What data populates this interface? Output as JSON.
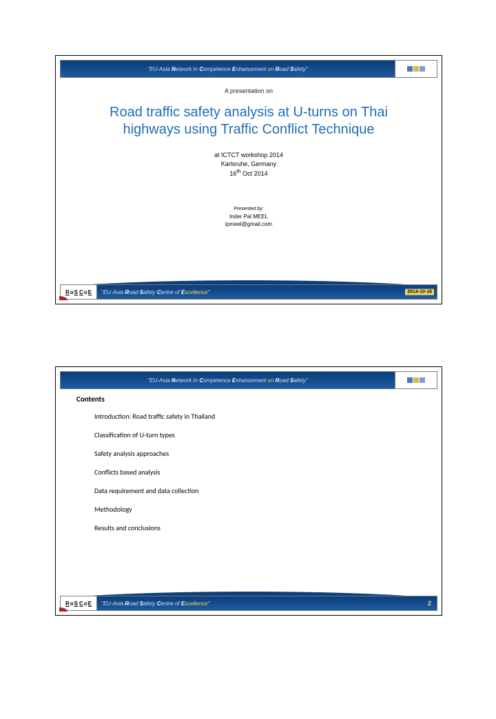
{
  "header_bar": {
    "text_prefix": "\"EU-Asia ",
    "text_bold1": "N",
    "text_mid1": "etwork In ",
    "text_bold2": "C",
    "text_mid2": "ompetence ",
    "text_bold3": "E",
    "text_mid3": "nhancement ",
    "text_yellow": "on ",
    "text_bold4": "R",
    "text_mid4": "oad ",
    "text_bold5": "S",
    "text_end": "afety\""
  },
  "footer_bar": {
    "text": "\"EU-Asia Road Safety Centre of Excellence\"",
    "logo_text": "RoSCoE"
  },
  "slide1": {
    "pretitle": "A presentation on",
    "title": "Road traffic safety analysis at U-turns on Thai highways using Traffic Conflict Technique",
    "venue_line1": "at ICTCT workshop 2014",
    "venue_line2": "Karlsruhe, Germany",
    "venue_line3": "16th Oct 2014",
    "presented_by_label": "Presented by:",
    "presenter_name": "Inder Pal MEEL",
    "presenter_email": "ipmeel@gmail.com",
    "date_chip": "2014-10-16"
  },
  "slide2": {
    "heading": "Contents",
    "items": [
      "Introduction: Road traffic safety in Thailand",
      "Classification of U-turn types",
      "Safety analysis approaches",
      "Conflicts based analysis",
      "Data requirement and data collection",
      "Methodology",
      "Results and conclusions"
    ],
    "page_number": "2"
  },
  "colors": {
    "title_color": "#1f6db5",
    "bar_gradient_top": "#0a3d7a",
    "bar_gradient_bottom": "#1e5aa0",
    "accent_yellow": "#f5d96b"
  }
}
